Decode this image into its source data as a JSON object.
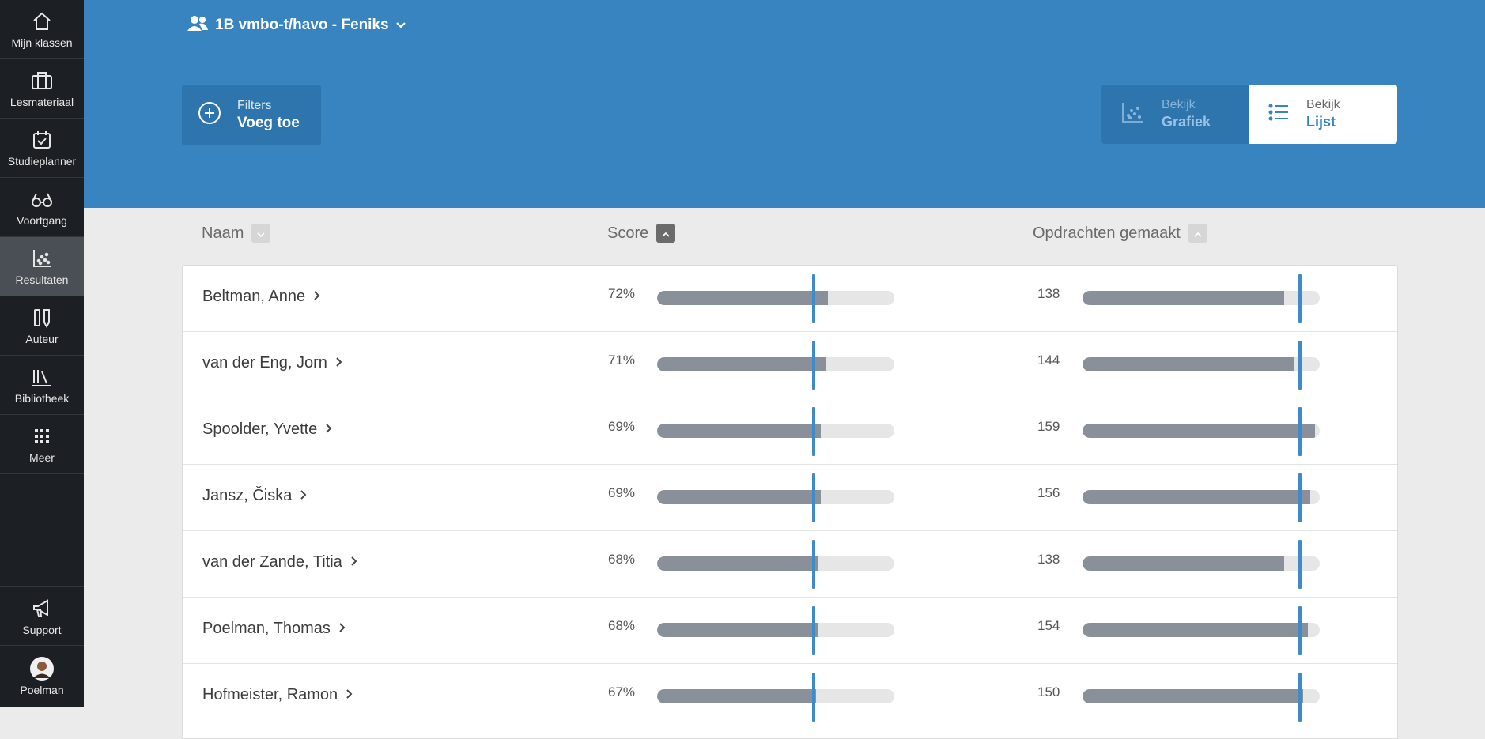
{
  "sidebar": {
    "items": [
      {
        "label": "Mijn klassen",
        "icon": "home-icon"
      },
      {
        "label": "Lesmateriaal",
        "icon": "briefcase-icon"
      },
      {
        "label": "Studieplanner",
        "icon": "calendar-check-icon"
      },
      {
        "label": "Voortgang",
        "icon": "glasses-icon"
      },
      {
        "label": "Resultaten",
        "icon": "scatter-chart-icon"
      },
      {
        "label": "Auteur",
        "icon": "pencil-ruler-icon"
      },
      {
        "label": "Bibliotheek",
        "icon": "library-icon"
      },
      {
        "label": "Meer",
        "icon": "grid-dots-icon"
      }
    ],
    "bottom": [
      {
        "label": "Support",
        "icon": "megaphone-icon"
      },
      {
        "label": "Poelman",
        "icon": "avatar"
      }
    ]
  },
  "header": {
    "group_label": "1B vmbo-t/havo - Feniks",
    "filters_caption": "Filters",
    "filters_action": "Voeg toe",
    "view_caption": "Bekijk",
    "view_chart": "Grafiek",
    "view_list": "Lijst"
  },
  "columns": {
    "name": "Naam",
    "score": "Score",
    "assignments": "Opdrachten gemaakt"
  },
  "rows": [
    {
      "name": "Beltman, Anne",
      "score": "72%",
      "score_frac": 0.72,
      "count": "138",
      "count_frac": 0.85
    },
    {
      "name": "van der Eng, Jorn",
      "score": "71%",
      "score_frac": 0.71,
      "count": "144",
      "count_frac": 0.89
    },
    {
      "name": "Spoolder, Yvette",
      "score": "69%",
      "score_frac": 0.69,
      "count": "159",
      "count_frac": 0.98
    },
    {
      "name": "Jansz, Čiska",
      "score": "69%",
      "score_frac": 0.69,
      "count": "156",
      "count_frac": 0.96
    },
    {
      "name": "van der Zande, Titia",
      "score": "68%",
      "score_frac": 0.68,
      "count": "138",
      "count_frac": 0.85
    },
    {
      "name": "Poelman, Thomas",
      "score": "68%",
      "score_frac": 0.68,
      "count": "154",
      "count_frac": 0.95
    },
    {
      "name": "Hofmeister, Ramon",
      "score": "67%",
      "score_frac": 0.67,
      "count": "150",
      "count_frac": 0.93
    }
  ],
  "markers": {
    "score_frac": 0.66,
    "count_frac": 0.915
  },
  "colors": {
    "sidebar": "#1c1f23",
    "header": "#3784c1",
    "bar_fill": "#8a9099",
    "marker": "#3f8ac8"
  }
}
